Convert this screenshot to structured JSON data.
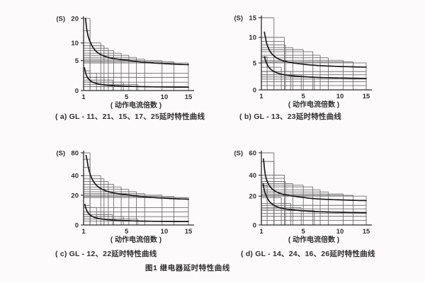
{
  "page": {
    "figure_caption": "图1  继电器延时特性曲线",
    "background": "#fdfafb",
    "grid_color": "#6f6f6f",
    "curve_color": "#1a1a1a",
    "axis_color": "#2b2b2b",
    "text_color": "#2f2f2f"
  },
  "chart_data": [
    {
      "id": "a",
      "type": "line",
      "caption": "( a) GL - 11、21、15、17、25延时特性曲线",
      "unit_label": "(S)",
      "xlabel": "( 动作电流倍数 )",
      "x_ticks": [
        1,
        5,
        10,
        15
      ],
      "x_anchors": [
        [
          1,
          0
        ],
        [
          5,
          0.41
        ],
        [
          10,
          0.77
        ],
        [
          15,
          1
        ]
      ],
      "y_ticks": [
        0,
        5,
        10,
        20
      ],
      "y_anchors": [
        [
          0,
          0
        ],
        [
          5,
          0.415
        ],
        [
          10,
          0.66
        ],
        [
          20,
          1
        ]
      ],
      "y_max": 20,
      "upper_steps": [
        [
          1.6,
          20
        ],
        [
          1.6,
          15
        ],
        [
          2.6,
          10
        ],
        [
          2.9,
          9.2
        ],
        [
          3.3,
          8.5
        ],
        [
          3.8,
          7.8
        ],
        [
          4.5,
          7.1
        ],
        [
          5.3,
          6.5
        ],
        [
          6.3,
          5.9
        ],
        [
          7.4,
          5.4
        ],
        [
          9.7,
          5.0
        ],
        [
          12,
          4.8
        ],
        [
          15,
          4.6
        ]
      ],
      "lower_steps": [
        [
          1.6,
          3.3
        ],
        [
          2.2,
          2.9
        ],
        [
          2.9,
          2.2
        ],
        [
          3.7,
          1.75
        ],
        [
          4.7,
          1.4
        ],
        [
          6.5,
          1.0
        ],
        [
          15,
          0.65
        ]
      ],
      "band_lines": [
        2.9,
        2.2,
        1.4
      ],
      "curves": [
        {
          "name": "upper-curve",
          "c": 4.0,
          "k": 4.6,
          "x0": 0.9,
          "y_start": 20,
          "y_end": 4.33
        },
        {
          "name": "lower-curve",
          "c": 0.5,
          "k": 0.95,
          "x0": 0.8,
          "y_start": 3.8,
          "y_end": 0.57
        }
      ]
    },
    {
      "id": "b",
      "type": "line",
      "caption": "( b) GL - 13、23延时特性曲线",
      "unit_label": "(S)",
      "xlabel": "( 动作电流倍数 )",
      "x_ticks": [
        1,
        5,
        10,
        15
      ],
      "x_anchors": [
        [
          1,
          0
        ],
        [
          5,
          0.4
        ],
        [
          10,
          0.75
        ],
        [
          15,
          1
        ]
      ],
      "y_ticks": [
        0,
        5,
        10,
        15
      ],
      "y_anchors": [
        [
          0,
          0
        ],
        [
          5,
          0.373
        ],
        [
          10,
          0.728
        ],
        [
          15,
          1
        ]
      ],
      "y_max": 15,
      "upper_steps": [
        [
          2.2,
          15
        ],
        [
          3.2,
          10
        ],
        [
          3.2,
          9.2
        ],
        [
          3.3,
          8.5
        ],
        [
          4.0,
          8.0
        ],
        [
          5.0,
          7.6
        ],
        [
          6.3,
          7.2
        ],
        [
          7.3,
          6.5
        ],
        [
          8.4,
          6.0
        ],
        [
          10.6,
          5.5
        ],
        [
          12.5,
          5.2
        ],
        [
          15,
          5.0
        ]
      ],
      "lower_steps": [
        [
          1.55,
          6.2
        ],
        [
          2.2,
          5.0
        ],
        [
          2.9,
          4.2
        ],
        [
          3.8,
          3.4
        ],
        [
          4.8,
          2.8
        ],
        [
          6.5,
          2.4
        ],
        [
          15,
          2.0
        ]
      ],
      "band_lines": [
        3.4,
        2.8,
        1.5,
        0.8
      ],
      "curves": [
        {
          "name": "upper-curve",
          "c": 4.0,
          "k": 3.2,
          "x0": 0.85,
          "y_start": 11.3,
          "y_end": 4.23
        },
        {
          "name": "lower-curve",
          "c": 2.0,
          "k": 1.9,
          "x0": 0.85,
          "y_start": 6.2,
          "y_end": 2.13
        }
      ]
    },
    {
      "id": "c",
      "type": "line",
      "caption": "( c) GL - 12、22延时特性曲线",
      "unit_label": "(S)",
      "xlabel": "( 动作电流倍数 )",
      "x_ticks": [
        1,
        5,
        10,
        15
      ],
      "x_anchors": [
        [
          1,
          0
        ],
        [
          5,
          0.41
        ],
        [
          10,
          0.77
        ],
        [
          15,
          1
        ]
      ],
      "y_ticks": [
        0,
        20,
        40,
        80
      ],
      "y_anchors": [
        [
          0,
          0
        ],
        [
          20,
          0.413
        ],
        [
          40,
          0.684
        ],
        [
          50,
          0.797
        ],
        [
          60,
          0.91
        ],
        [
          80,
          1
        ]
      ],
      "y_max": 80,
      "upper_steps": [
        [
          1.6,
          80
        ],
        [
          1.6,
          60
        ],
        [
          1.6,
          50
        ],
        [
          2.6,
          40
        ],
        [
          2.9,
          36.8
        ],
        [
          3.3,
          34
        ],
        [
          3.8,
          31.2
        ],
        [
          4.5,
          28.4
        ],
        [
          5.3,
          26
        ],
        [
          6.3,
          23.6
        ],
        [
          7.4,
          21.6
        ],
        [
          9.7,
          20
        ],
        [
          12,
          19.2
        ],
        [
          15,
          18.4
        ]
      ],
      "lower_steps": [
        [
          1.6,
          13.2
        ],
        [
          2.2,
          11.6
        ],
        [
          2.9,
          8.8
        ],
        [
          3.7,
          7.0
        ],
        [
          4.7,
          5.6
        ],
        [
          6.5,
          4.0
        ],
        [
          15,
          2.6
        ]
      ],
      "band_lines": [
        11.6,
        8.8,
        5.6
      ],
      "curves": [
        {
          "name": "upper-curve",
          "c": 16,
          "k": 18.4,
          "x0": 0.9,
          "y_start": 72,
          "y_end": 17.3
        },
        {
          "name": "lower-curve",
          "c": 2.0,
          "k": 3.8,
          "x0": 0.8,
          "y_start": 13.8,
          "y_end": 2.27
        }
      ]
    },
    {
      "id": "d",
      "type": "line",
      "caption": "( d) GL - 14、24、16、26延时特性曲线",
      "unit_label": "(S)",
      "xlabel": "( 动作电流倍数 )",
      "x_ticks": [
        1,
        5,
        10,
        15
      ],
      "x_anchors": [
        [
          1,
          0
        ],
        [
          5,
          0.4
        ],
        [
          10,
          0.75
        ],
        [
          15,
          1
        ]
      ],
      "y_ticks": [
        0,
        20,
        40,
        60
      ],
      "y_anchors": [
        [
          0,
          0
        ],
        [
          20,
          0.4
        ],
        [
          40,
          0.69
        ],
        [
          50,
          0.88
        ],
        [
          60,
          1
        ]
      ],
      "y_max": 60,
      "upper_steps": [
        [
          2.2,
          60
        ],
        [
          2.2,
          50
        ],
        [
          3.2,
          40
        ],
        [
          3.2,
          37
        ],
        [
          3.3,
          34
        ],
        [
          4.0,
          32
        ],
        [
          5.0,
          30.4
        ],
        [
          6.3,
          28.8
        ],
        [
          7.3,
          26
        ],
        [
          8.4,
          24
        ],
        [
          10.6,
          22
        ],
        [
          12.5,
          20.8
        ],
        [
          15,
          20
        ]
      ],
      "lower_steps": [
        [
          1.55,
          30
        ],
        [
          2.2,
          24
        ],
        [
          2.9,
          19
        ],
        [
          3.8,
          15
        ],
        [
          4.8,
          12
        ],
        [
          6.5,
          10
        ],
        [
          15,
          8
        ]
      ],
      "band_lines": [
        13.6,
        11.2,
        6.0,
        3.2
      ],
      "curves": [
        {
          "name": "upper-curve",
          "c": 16,
          "k": 12.8,
          "x0": 0.85,
          "y_start": 53,
          "y_end": 16.9
        },
        {
          "name": "lower-curve",
          "c": 8,
          "k": 7.6,
          "x0": 0.85,
          "y_start": 32,
          "y_end": 8.54
        }
      ]
    }
  ]
}
